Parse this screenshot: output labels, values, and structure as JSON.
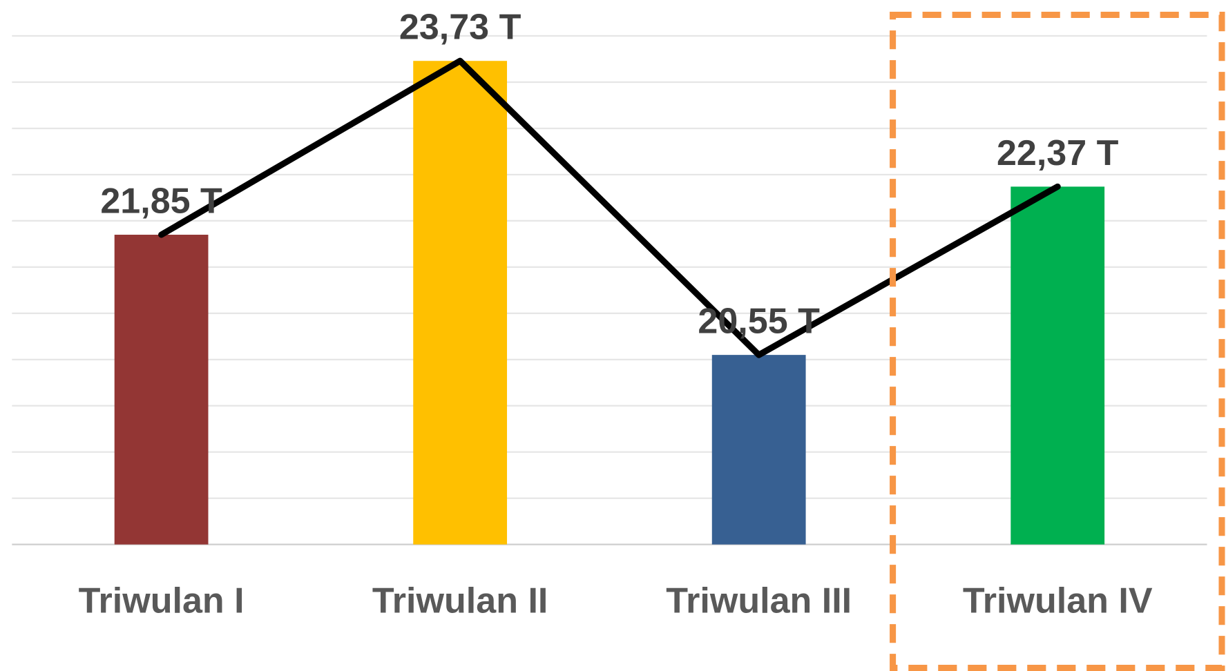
{
  "chart_data": {
    "type": "bar",
    "categories": [
      "Triwulan I",
      "Triwulan II",
      "Triwulan III",
      "Triwulan IV"
    ],
    "values": [
      21.85,
      23.73,
      20.55,
      22.37
    ],
    "value_labels": [
      "21,85 T",
      "23,73 T",
      "20,55 T",
      "22,37 T"
    ],
    "colors": [
      "#933634",
      "#ffc000",
      "#376092",
      "#00b050"
    ],
    "line_color": "#000000",
    "ylim": [
      18.5,
      24
    ],
    "yticks": [
      18.5,
      19,
      19.5,
      20,
      20.5,
      21,
      21.5,
      22,
      22.5,
      23,
      23.5,
      24
    ],
    "grid": true
  }
}
